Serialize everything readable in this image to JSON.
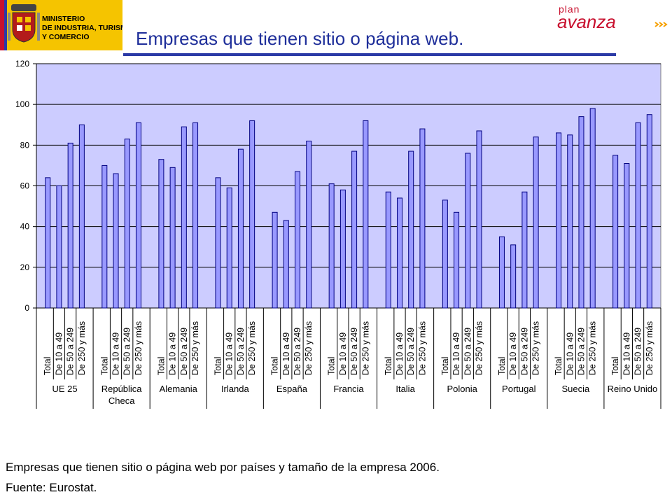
{
  "header": {
    "ministry_lines": [
      "MINISTERIO",
      "DE INDUSTRIA, TURISMO",
      "Y COMERCIO"
    ],
    "plan_small": "plan",
    "plan_big": "avanza",
    "title": "Empresas que tienen sitio o página web."
  },
  "footer": {
    "caption": "Empresas que tienen sitio o página web por países y tamaño de la  empresa 2006.",
    "source": "Fuente: Eurostat."
  },
  "colors": {
    "plot_bg": "#ccccff",
    "bar_fill": "#9999ff",
    "bar_edge": "#000080",
    "accent": "#1f2f9a",
    "logo_yellow": "#f5c400",
    "plan_red": "#c8102e"
  },
  "chart_data": {
    "type": "bar",
    "title": "",
    "xlabel": "",
    "ylabel": "",
    "ylim": [
      0,
      120
    ],
    "yticks": [
      0,
      20,
      40,
      60,
      80,
      100,
      120
    ],
    "grid": true,
    "subcategories": [
      "Total",
      "De 10 a 49",
      "De 50 a 249",
      "De 250 y más"
    ],
    "groups": [
      {
        "country": "UE 25",
        "values": [
          64,
          60,
          81,
          90
        ]
      },
      {
        "country": "República Checa",
        "values": [
          70,
          66,
          83,
          91
        ]
      },
      {
        "country": "Alemania",
        "values": [
          73,
          69,
          89,
          91
        ]
      },
      {
        "country": "Irlanda",
        "values": [
          64,
          59,
          78,
          92
        ]
      },
      {
        "country": "España",
        "values": [
          47,
          43,
          67,
          82
        ]
      },
      {
        "country": "Francia",
        "values": [
          61,
          58,
          77,
          92
        ]
      },
      {
        "country": "Italia",
        "values": [
          57,
          54,
          77,
          88
        ]
      },
      {
        "country": "Polonia",
        "values": [
          53,
          47,
          76,
          87
        ]
      },
      {
        "country": "Portugal",
        "values": [
          35,
          31,
          57,
          84
        ]
      },
      {
        "country": "Suecia",
        "values": [
          86,
          85,
          94,
          98
        ]
      },
      {
        "country": "Reino Unido",
        "values": [
          75,
          71,
          91,
          95
        ]
      }
    ]
  }
}
